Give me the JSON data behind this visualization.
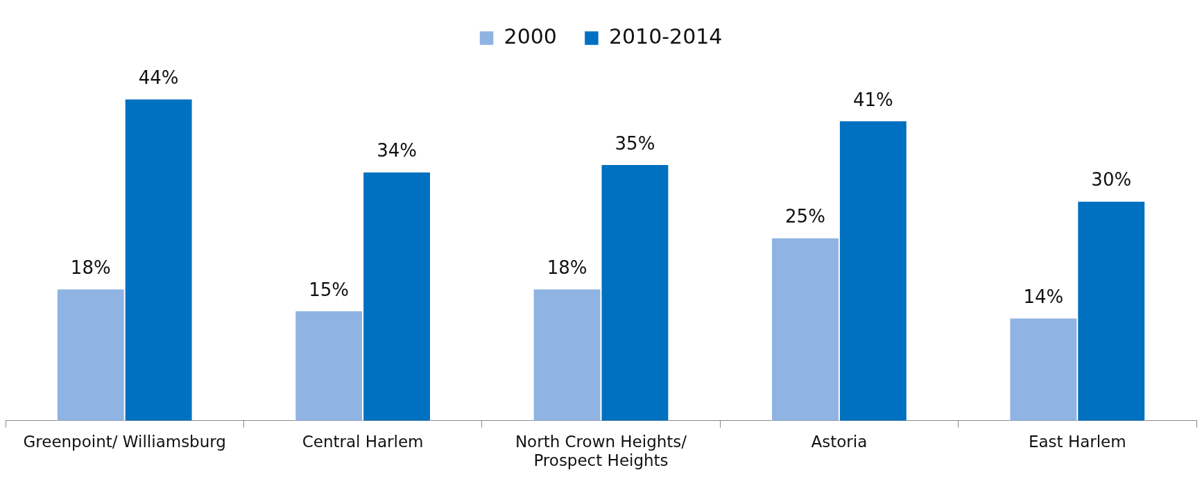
{
  "chart_data": {
    "type": "bar",
    "categories": [
      "Greenpoint/ Williamsburg",
      "Central Harlem",
      "North Crown Heights/ Prospect Heights",
      "Astoria",
      "East Harlem"
    ],
    "series": [
      {
        "name": "2000",
        "color": "#8fb3e2",
        "values": [
          18,
          15,
          18,
          25,
          14
        ],
        "value_labels": [
          "18%",
          "15%",
          "18%",
          "25%",
          "14%"
        ]
      },
      {
        "name": "2010-2014",
        "color": "#0070c0",
        "values": [
          44,
          34,
          35,
          41,
          30
        ],
        "value_labels": [
          "44%",
          "34%",
          "35%",
          "41%",
          "30%"
        ]
      }
    ],
    "legend": "top",
    "grid": false
  }
}
